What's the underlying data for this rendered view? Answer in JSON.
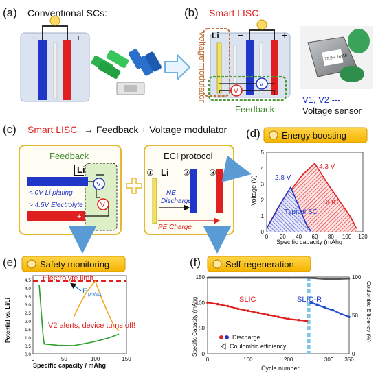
{
  "panel_a": {
    "label": "(a)",
    "title": "Conventional SCs:",
    "minus": "−",
    "plus": "+"
  },
  "panel_b": {
    "label": "(b)",
    "title": "Smart LISC:",
    "li": "Li",
    "voltage_modulator": "Voltage modulator",
    "v1": "V",
    "v2": "V",
    "minus": "−",
    "plus": "+",
    "feedback": "Feedback",
    "sensor_legend": "V1, V2 ---",
    "sensor_caption": "Voltage sensor",
    "photo_text": "75.9H\n2mAh"
  },
  "panel_c": {
    "label": "(c)",
    "title_red": "Smart LISC",
    "title_rest": "→ Feedback + Voltage modulator",
    "feedback": "Feedback",
    "li": "Li",
    "v1": "V",
    "v2": "V",
    "li_plating": "< 0V Li plating",
    "electrolyte": "> 4.5V Electrolyte",
    "eci": "ECI protocol",
    "step1": "①",
    "step2": "②",
    "step3": "③",
    "eci_li": "Li",
    "ne_discharge": "NE\nDischarge",
    "pe_charge": "PE Charge"
  },
  "panel_d": {
    "label": "(d)",
    "badge": "Energy boosting",
    "ylabel": "Voltage (V)",
    "xlabel": "Specific capacity (mAhg",
    "v_typical": "2.8 V",
    "v_slic": "4.3 V",
    "typical_sc": "Typical SC",
    "slic": "SLIC",
    "chart_data": {
      "type": "line",
      "xlim": [
        0,
        120
      ],
      "ylim": [
        0,
        5
      ],
      "xticks": [
        0,
        20,
        40,
        60,
        80,
        100,
        120
      ],
      "yticks": [
        0,
        1,
        2,
        3,
        4,
        5
      ],
      "series": [
        {
          "name": "Typical SC",
          "points": [
            [
              0,
              0.2
            ],
            [
              10,
              1.1
            ],
            [
              20,
              2.0
            ],
            [
              30,
              2.8
            ],
            [
              40,
              1.6
            ],
            [
              50,
              0.4
            ],
            [
              55,
              0.05
            ]
          ]
        },
        {
          "name": "SLIC",
          "points": [
            [
              0,
              0.2
            ],
            [
              15,
              1.6
            ],
            [
              30,
              2.6
            ],
            [
              45,
              3.6
            ],
            [
              60,
              4.3
            ],
            [
              75,
              3.1
            ],
            [
              90,
              2.0
            ],
            [
              105,
              0.9
            ],
            [
              112,
              0.2
            ]
          ]
        }
      ]
    }
  },
  "panel_e": {
    "label": "(e)",
    "badge": "Safety monitoring",
    "ylabel": "Potential vs. Li/Li",
    "xlabel": "Specific capacity / mAhg",
    "electrolyte_limit": "Electrolyte limit",
    "ep_max": "E",
    "ep_max_sub": "p-Max",
    "alert": "V2 alerts, device turns off!",
    "chart_data": {
      "type": "line",
      "xlim": [
        0,
        150
      ],
      "ylim": [
        0,
        4.5
      ],
      "xticks": [
        0,
        50,
        100,
        150
      ],
      "yticks": [
        0,
        0.5,
        1.0,
        1.5,
        2.0,
        2.5,
        3.0,
        3.5,
        4.0,
        4.5
      ],
      "limit": 4.4,
      "series": [
        {
          "name": "PE",
          "color": "#f5a623",
          "points": [
            [
              65,
              2.2
            ],
            [
              75,
              3.0
            ],
            [
              85,
              3.7
            ],
            [
              95,
              4.2
            ],
            [
              100,
              4.4
            ],
            [
              110,
              3.4
            ],
            [
              120,
              2.5
            ],
            [
              130,
              1.7
            ],
            [
              138,
              1.4
            ]
          ]
        },
        {
          "name": "NE",
          "color": "#2ca02c",
          "points": [
            [
              10,
              4.2
            ],
            [
              12,
              3.2
            ],
            [
              14,
              2.2
            ],
            [
              16,
              1.2
            ],
            [
              18,
              0.6
            ],
            [
              40,
              0.52
            ],
            [
              65,
              0.5
            ],
            [
              80,
              0.6
            ],
            [
              100,
              0.75
            ],
            [
              120,
              0.95
            ],
            [
              138,
              1.2
            ]
          ]
        }
      ]
    }
  },
  "panel_f": {
    "label": "(f)",
    "badge": "Self-regeneration",
    "ylabel_left": "Specific Capacity (mAhg",
    "ylabel_right": "Coulombic Efficiency (%)",
    "xlabel": "Cycle number",
    "slic": "SLIC",
    "slic_r": "SLIC-R",
    "legend_discharge": "Discharge",
    "legend_ce": "Coulombic efficiency",
    "chart_data": {
      "type": "scatter",
      "xlim": [
        0,
        350
      ],
      "ylim_left": [
        0,
        150
      ],
      "ylim_right": [
        0,
        100
      ],
      "xticks": [
        0,
        100,
        200,
        300,
        350
      ],
      "yticks_left": [
        0,
        50,
        100,
        150
      ],
      "yticks_right": [
        0,
        50,
        100
      ],
      "break_at": 250,
      "series": [
        {
          "name": "SLIC",
          "color": "#e02020",
          "points": [
            [
              0,
              100
            ],
            [
              25,
              97
            ],
            [
              50,
              93
            ],
            [
              75,
              88
            ],
            [
              100,
              84
            ],
            [
              125,
              80
            ],
            [
              150,
              76
            ],
            [
              175,
              72
            ],
            [
              200,
              68
            ],
            [
              225,
              66
            ],
            [
              245,
              64
            ]
          ]
        },
        {
          "name": "SLIC-R",
          "color": "#2050d0",
          "points": [
            [
              255,
              100
            ],
            [
              270,
              96
            ],
            [
              290,
              90
            ],
            [
              310,
              85
            ],
            [
              330,
              78
            ],
            [
              350,
              72
            ]
          ]
        },
        {
          "name": "CE",
          "color": "#555555",
          "points": [
            [
              0,
              99
            ],
            [
              100,
              99
            ],
            [
              200,
              99
            ],
            [
              250,
              99
            ],
            [
              300,
              97
            ],
            [
              350,
              98
            ]
          ]
        }
      ]
    }
  }
}
